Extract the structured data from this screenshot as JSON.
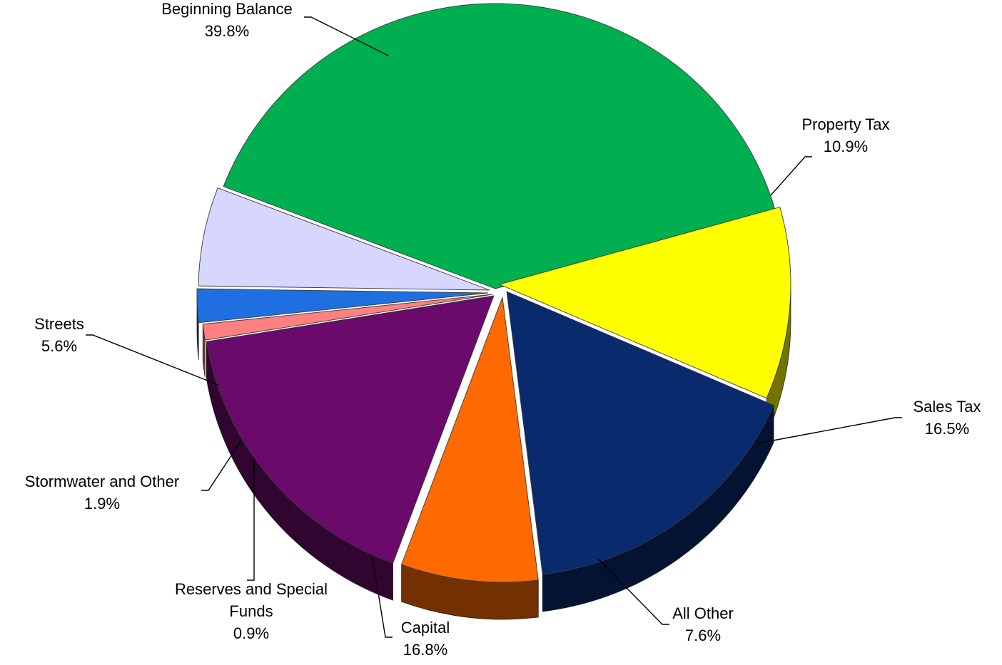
{
  "chart_data": {
    "type": "pie",
    "title": "",
    "style": "3d-exploded-tilt",
    "slices": [
      {
        "label": "Beginning Balance",
        "value": 39.8,
        "value_label": "39.8%",
        "color": "#00B050"
      },
      {
        "label": "Property Tax",
        "value": 10.9,
        "value_label": "10.9%",
        "color": "#FFFF00"
      },
      {
        "label": "Sales Tax",
        "value": 16.5,
        "value_label": "16.5%",
        "color": "#0A2A6E"
      },
      {
        "label": "All Other",
        "value": 7.6,
        "value_label": "7.6%",
        "color": "#FF6A00"
      },
      {
        "label": "Capital",
        "value": 16.8,
        "value_label": "16.8%",
        "color": "#6A0A6A"
      },
      {
        "label": "Reserves and Special Funds",
        "value": 0.9,
        "value_label": "0.9%",
        "color": "#FF8080"
      },
      {
        "label": "Stormwater and Other",
        "value": 1.9,
        "value_label": "1.9%",
        "color": "#1F6FE0"
      },
      {
        "label": "Streets",
        "value": 5.6,
        "value_label": "5.6%",
        "color": "#D6D6FF"
      }
    ]
  }
}
